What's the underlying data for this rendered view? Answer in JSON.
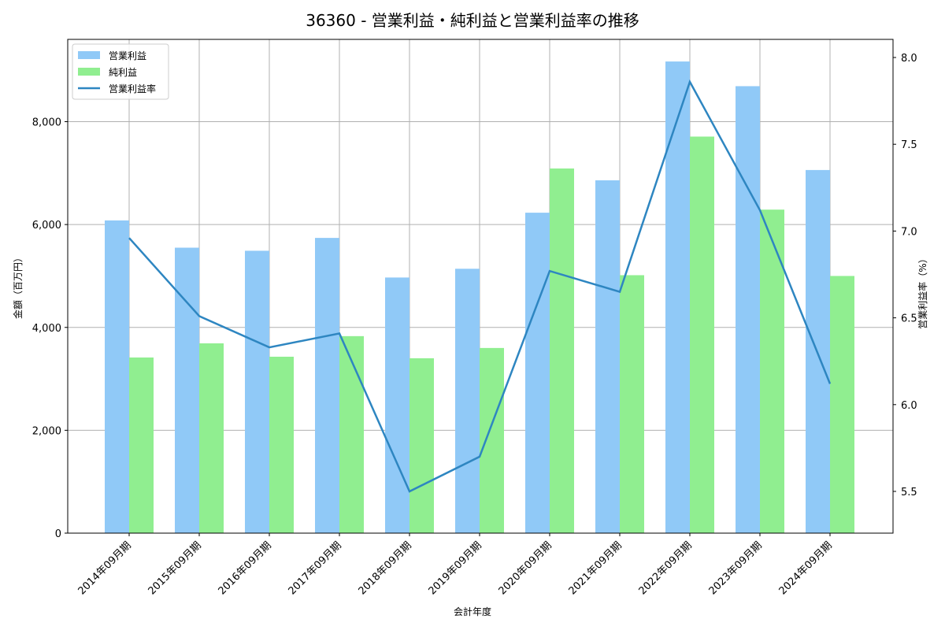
{
  "chart_data": {
    "type": "bar",
    "title": "36360 - 営業利益・純利益と営業利益率の推移",
    "xlabel": "会計年度",
    "ylabel": "金額（百万円）",
    "y2label": "営業利益率（%）",
    "ylim": [
      0,
      9600
    ],
    "y2lim": [
      5.25,
      8.09
    ],
    "yticks": [
      0,
      2000,
      4000,
      6000,
      8000
    ],
    "ytick_labels": [
      "0",
      "2,000",
      "4,000",
      "6,000",
      "8,000"
    ],
    "y2ticks": [
      5.5,
      6.0,
      6.5,
      7.0,
      7.5,
      8.0
    ],
    "y2tick_labels": [
      "5.5",
      "6.0",
      "6.5",
      "7.0",
      "7.5",
      "8.0"
    ],
    "grid": true,
    "legend_position": "upper left",
    "categories": [
      "2014年09月期",
      "2015年09月期",
      "2016年09月期",
      "2017年09月期",
      "2018年09月期",
      "2019年09月期",
      "2020年09月期",
      "2021年09月期",
      "2022年09月期",
      "2023年09月期",
      "2024年09月期"
    ],
    "series": [
      {
        "name": "営業利益",
        "type": "bar",
        "axis": "left",
        "color": "#90c9f7",
        "values": [
          6080,
          5550,
          5490,
          5740,
          4970,
          5140,
          6230,
          6860,
          9170,
          8690,
          7060
        ]
      },
      {
        "name": "純利益",
        "type": "bar",
        "axis": "left",
        "color": "#90ee90",
        "values": [
          3415,
          3690,
          3430,
          3830,
          3400,
          3600,
          7090,
          5015,
          7710,
          6290,
          5000
        ]
      },
      {
        "name": "営業利益率",
        "type": "line",
        "axis": "right",
        "color": "#2e86c1",
        "values": [
          6.96,
          6.51,
          6.33,
          6.41,
          5.5,
          5.7,
          6.77,
          6.65,
          7.86,
          7.12,
          6.12
        ]
      }
    ]
  }
}
